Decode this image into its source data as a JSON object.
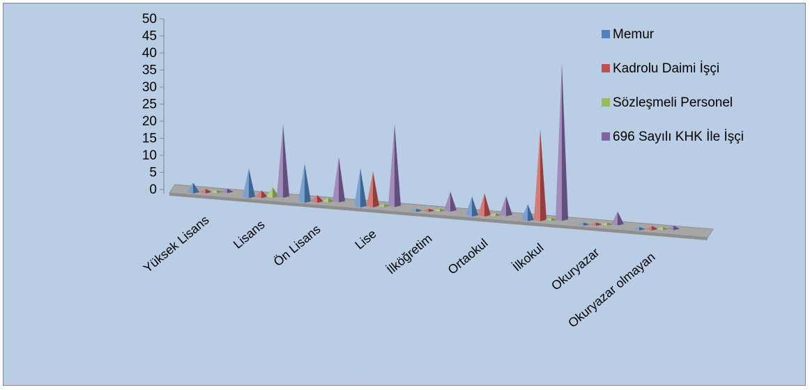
{
  "chart_data": {
    "type": "bar",
    "categories": [
      "Yüksek Lisans",
      "Lisans",
      "Ön Lisans",
      "Lise",
      "İlköğretim",
      "Ortaokul",
      "İlkokul",
      "Okuryazar",
      "Okuryazar olmayan"
    ],
    "series": [
      {
        "name": "Memur",
        "color": "#4f81bd",
        "values": [
          3,
          9,
          12,
          12,
          0,
          6,
          5,
          0,
          0
        ]
      },
      {
        "name": "Kadrolu Daimi İşçi",
        "color": "#c0504d",
        "values": [
          1,
          2,
          2,
          11,
          0,
          7,
          29,
          0,
          1
        ]
      },
      {
        "name": "Sözleşmeli Personel",
        "color": "#9bbb59",
        "values": [
          0,
          3,
          1,
          0,
          0,
          0,
          0,
          0,
          0
        ]
      },
      {
        "name": "696  Sayılı KHK İle İşçi",
        "color": "#8064a2",
        "values": [
          1,
          23,
          14,
          26,
          6,
          6,
          50,
          4,
          1
        ]
      }
    ],
    "ylim": [
      0,
      50
    ],
    "yticks": [
      "0",
      "5",
      "10",
      "15",
      "20",
      "25",
      "30",
      "35",
      "40",
      "45",
      "50"
    ],
    "grid": false,
    "legend_position": "right",
    "xlabel": "",
    "ylabel": ""
  }
}
